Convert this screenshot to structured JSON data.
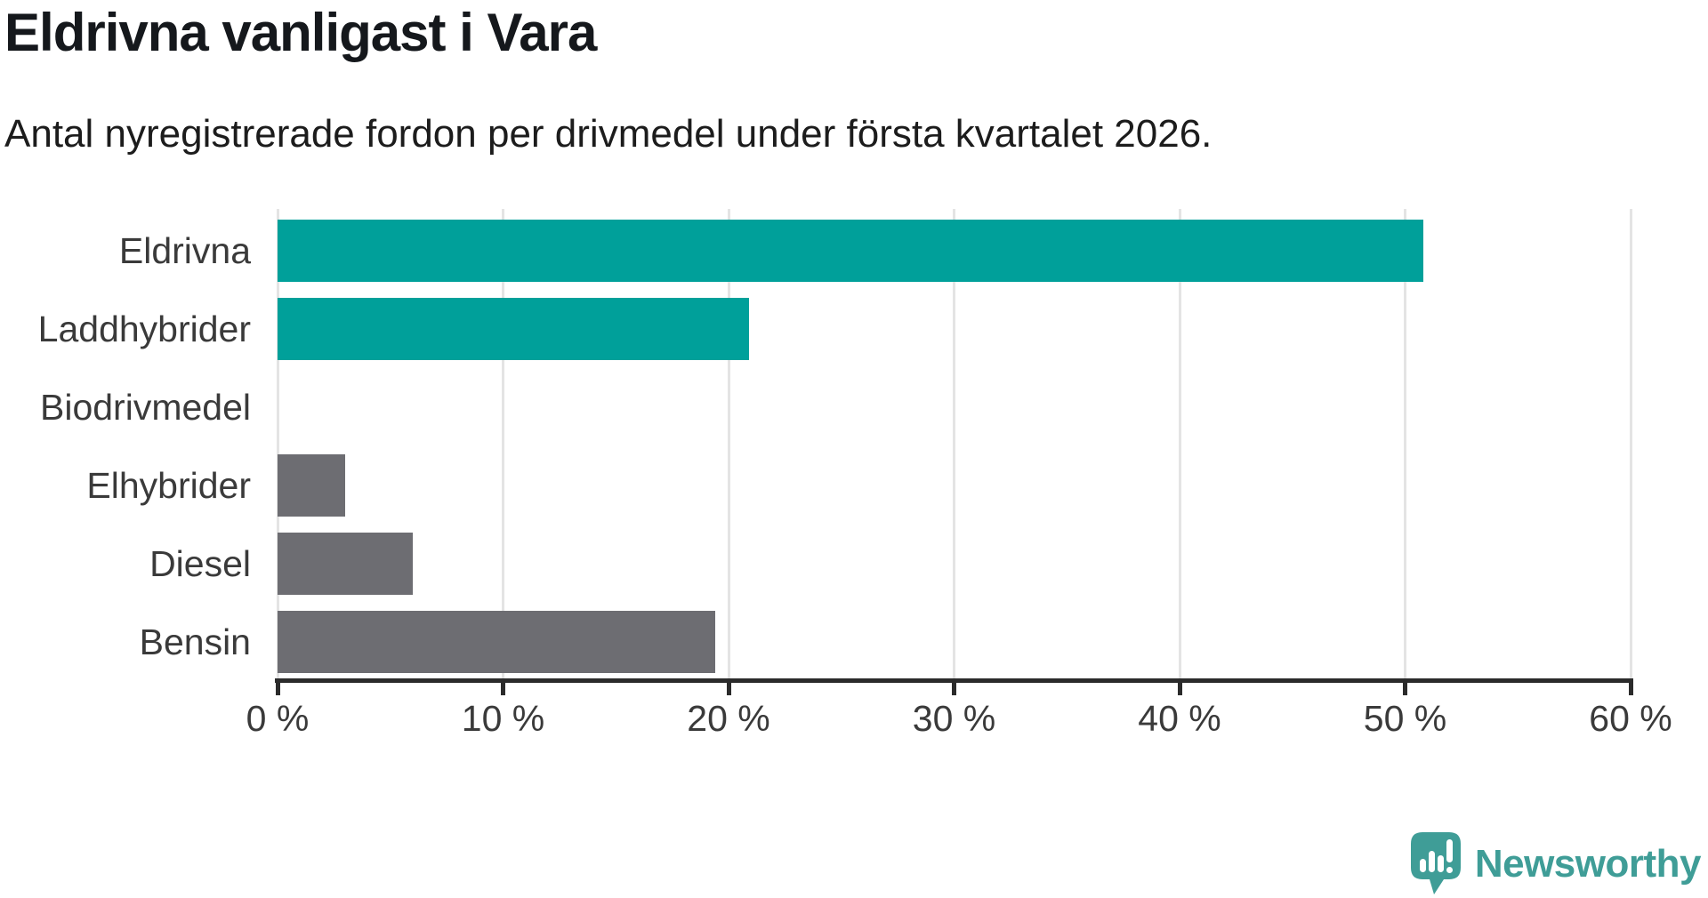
{
  "header": {
    "title": "Eldrivna vanligast i Vara",
    "subtitle": "Antal nyregistrerade fordon per drivmedel under första kvartalet 2026."
  },
  "chart_data": {
    "type": "bar",
    "orientation": "horizontal",
    "title": "Eldrivna vanligast i Vara",
    "subtitle": "Antal nyregistrerade fordon per drivmedel under första kvartalet 2026.",
    "categories": [
      "Eldrivna",
      "Laddhybrider",
      "Biodrivmedel",
      "Elhybrider",
      "Diesel",
      "Bensin"
    ],
    "values": [
      50.8,
      20.9,
      0,
      3.0,
      6.0,
      19.4
    ],
    "unit": "%",
    "xlim": [
      0,
      60
    ],
    "x_ticks": [
      0,
      10,
      20,
      30,
      40,
      50,
      60
    ],
    "x_tick_labels": [
      "0 %",
      "10 %",
      "20 %",
      "30 %",
      "40 %",
      "50 %",
      "60 %"
    ],
    "grid": "vertical-only",
    "legend": "none",
    "bar_colors": [
      "#00a09a",
      "#00a09a",
      "#6d6d72",
      "#6d6d72",
      "#6d6d72",
      "#6d6d72"
    ],
    "colors": {
      "highlight": "#00a09a",
      "default": "#6d6d72",
      "gridline": "#e4e4e4",
      "axis": "#2b2b2b",
      "label": "#3a3a3a"
    }
  },
  "branding": {
    "logo_text": "Newsworthy",
    "logo_color": "#3f9d97",
    "logo_icon": "speech-bubble-bar-chart"
  }
}
